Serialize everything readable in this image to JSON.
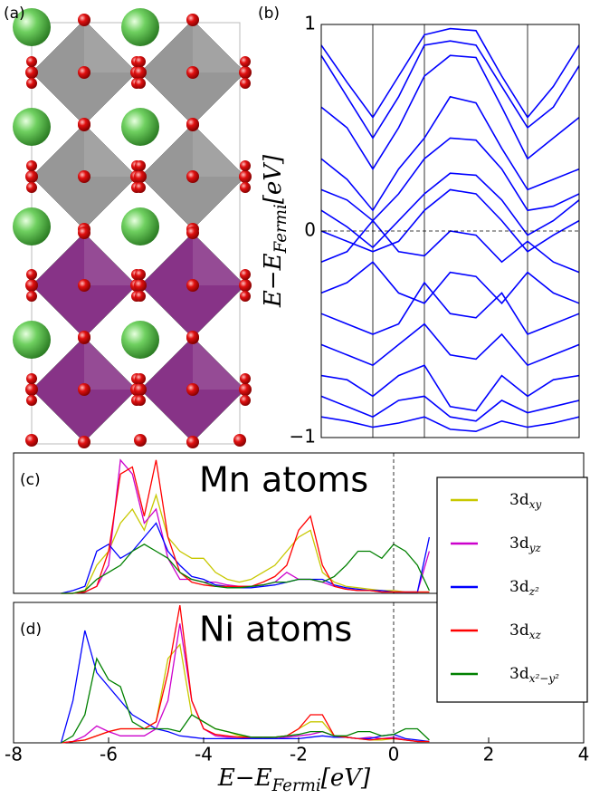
{
  "figure_a": {
    "label": "(a)"
  },
  "chart_data": [
    {
      "type": "bands",
      "panel_label": "(b)",
      "color": "#0000ff",
      "ylabel": {
        "text": "E−E",
        "subscript": "Fermi",
        "suffix": "[eV]"
      },
      "xlim": [
        0,
        1
      ],
      "ylim": [
        -1,
        1
      ],
      "yticks": [
        {
          "value": -1,
          "label": "−1"
        },
        0,
        1
      ],
      "vlines": [
        0.2,
        0.4,
        0.8
      ],
      "hline": 0,
      "x": [
        0,
        0.1,
        0.2,
        0.3,
        0.4,
        0.5,
        0.6,
        0.7,
        0.8,
        0.9,
        1.0
      ],
      "series": [
        {
          "values": [
            0.9,
            0.72,
            0.55,
            0.75,
            0.95,
            0.98,
            0.97,
            0.75,
            0.55,
            0.7,
            0.9
          ]
        },
        {
          "values": [
            0.85,
            0.65,
            0.45,
            0.65,
            0.9,
            0.92,
            0.9,
            0.7,
            0.5,
            0.6,
            0.8
          ]
        },
        {
          "values": [
            0.6,
            0.5,
            0.3,
            0.5,
            0.75,
            0.85,
            0.84,
            0.6,
            0.35,
            0.45,
            0.55
          ]
        },
        {
          "values": [
            0.35,
            0.25,
            0.1,
            0.3,
            0.45,
            0.65,
            0.62,
            0.4,
            0.2,
            0.25,
            0.3
          ]
        },
        {
          "values": [
            0.2,
            0.15,
            0.05,
            0.18,
            0.35,
            0.45,
            0.44,
            0.3,
            0.1,
            0.12,
            0.18
          ]
        },
        {
          "values": [
            0.1,
            0.02,
            -0.08,
            0.05,
            0.18,
            0.28,
            0.27,
            0.15,
            -0.02,
            0.05,
            0.15
          ]
        },
        {
          "values": [
            0.0,
            -0.05,
            -0.1,
            -0.05,
            0.1,
            0.2,
            0.18,
            0.05,
            -0.1,
            -0.02,
            0.05
          ]
        },
        {
          "values": [
            -0.15,
            -0.1,
            0.05,
            -0.1,
            -0.12,
            0.0,
            -0.02,
            -0.15,
            -0.05,
            -0.15,
            -0.2
          ]
        },
        {
          "values": [
            -0.3,
            -0.25,
            -0.15,
            -0.3,
            -0.35,
            -0.2,
            -0.22,
            -0.35,
            -0.2,
            -0.3,
            -0.35
          ]
        },
        {
          "values": [
            -0.4,
            -0.45,
            -0.5,
            -0.45,
            -0.25,
            -0.4,
            -0.42,
            -0.3,
            -0.5,
            -0.45,
            -0.4
          ]
        },
        {
          "values": [
            -0.55,
            -0.6,
            -0.65,
            -0.55,
            -0.45,
            -0.6,
            -0.62,
            -0.5,
            -0.65,
            -0.6,
            -0.55
          ]
        },
        {
          "values": [
            -0.7,
            -0.72,
            -0.8,
            -0.7,
            -0.65,
            -0.85,
            -0.87,
            -0.7,
            -0.8,
            -0.72,
            -0.7
          ]
        },
        {
          "values": [
            -0.8,
            -0.85,
            -0.9,
            -0.82,
            -0.8,
            -0.9,
            -0.92,
            -0.82,
            -0.88,
            -0.85,
            -0.82
          ]
        },
        {
          "values": [
            -0.9,
            -0.92,
            -0.95,
            -0.93,
            -0.9,
            -0.96,
            -0.97,
            -0.92,
            -0.95,
            -0.93,
            -0.9
          ]
        }
      ]
    },
    {
      "type": "line",
      "panel_label": "(c)",
      "annotation": "Mn atoms",
      "xlim": [
        -8,
        4
      ],
      "ylim": [
        0,
        1
      ],
      "vline": 0,
      "legend": "right",
      "x": [
        -7,
        -6.75,
        -6.5,
        -6.25,
        -6,
        -5.75,
        -5.5,
        -5.25,
        -5,
        -4.75,
        -4.5,
        -4.25,
        -4,
        -3.75,
        -3.5,
        -3.25,
        -3,
        -2.75,
        -2.5,
        -2.25,
        -2,
        -1.75,
        -1.5,
        -1.25,
        -1,
        -0.75,
        -0.5,
        -0.25,
        0,
        0.25,
        0.5,
        0.75
      ],
      "series": [
        {
          "name": "3d",
          "subscript": "xy",
          "color": "#c8c800",
          "values": [
            0,
            0,
            0.02,
            0.2,
            0.3,
            0.5,
            0.6,
            0.45,
            0.7,
            0.4,
            0.3,
            0.25,
            0.25,
            0.15,
            0.1,
            0.08,
            0.1,
            0.15,
            0.2,
            0.3,
            0.4,
            0.45,
            0.15,
            0.08,
            0.05,
            0.04,
            0.03,
            0.02,
            0.02,
            0.01,
            0.01,
            0.01
          ]
        },
        {
          "name": "3d",
          "subscript": "yz",
          "color": "#cc00cc",
          "values": [
            0,
            0,
            0.01,
            0.05,
            0.2,
            0.95,
            0.85,
            0.5,
            0.6,
            0.25,
            0.1,
            0.1,
            0.08,
            0.08,
            0.06,
            0.05,
            0.05,
            0.06,
            0.08,
            0.15,
            0.1,
            0.1,
            0.08,
            0.05,
            0.03,
            0.02,
            0.02,
            0.01,
            0.01,
            0.01,
            0.01,
            0.3
          ]
        },
        {
          "name": "3d",
          "subscript": "z²",
          "color": "#0000ff",
          "values": [
            0,
            0.02,
            0.05,
            0.3,
            0.35,
            0.25,
            0.3,
            0.4,
            0.5,
            0.3,
            0.2,
            0.12,
            0.1,
            0.06,
            0.05,
            0.04,
            0.04,
            0.05,
            0.06,
            0.08,
            0.1,
            0.1,
            0.1,
            0.06,
            0.04,
            0.03,
            0.02,
            0.02,
            0.01,
            0.01,
            0.01,
            0.4
          ]
        },
        {
          "name": "3d",
          "subscript": "xz",
          "color": "#ff0000",
          "values": [
            0,
            0,
            0.01,
            0.05,
            0.3,
            0.85,
            0.9,
            0.55,
            0.95,
            0.4,
            0.15,
            0.08,
            0.06,
            0.05,
            0.05,
            0.05,
            0.05,
            0.08,
            0.12,
            0.2,
            0.45,
            0.55,
            0.2,
            0.05,
            0.03,
            0.02,
            0.02,
            0.01,
            0.01,
            0.01,
            0.01,
            0.01
          ]
        },
        {
          "name": "3d",
          "subscript": "x²−y²",
          "color": "#008000",
          "values": [
            0,
            0,
            0.02,
            0.1,
            0.15,
            0.2,
            0.3,
            0.35,
            0.3,
            0.25,
            0.15,
            0.1,
            0.08,
            0.05,
            0.04,
            0.04,
            0.05,
            0.06,
            0.08,
            0.08,
            0.1,
            0.1,
            0.08,
            0.12,
            0.2,
            0.3,
            0.3,
            0.25,
            0.35,
            0.3,
            0.2,
            0.02
          ]
        }
      ]
    },
    {
      "type": "line",
      "panel_label": "(d)",
      "annotation": "Ni atoms",
      "xlabel": {
        "text": "E−E",
        "subscript": "Fermi",
        "suffix": "[eV]"
      },
      "xlim": [
        -8,
        4
      ],
      "ylim": [
        0,
        1
      ],
      "vline": 0,
      "xticks": [
        -8,
        -6,
        -4,
        -2,
        0,
        2,
        4
      ],
      "x": [
        -7,
        -6.75,
        -6.5,
        -6.25,
        -6,
        -5.75,
        -5.5,
        -5.25,
        -5,
        -4.75,
        -4.5,
        -4.25,
        -4,
        -3.75,
        -3.5,
        -3.25,
        -3,
        -2.75,
        -2.5,
        -2.25,
        -2,
        -1.75,
        -1.5,
        -1.25,
        -1,
        -0.75,
        -0.5,
        -0.25,
        0,
        0.25,
        0.5,
        0.75
      ],
      "series": [
        {
          "color": "#c8c800",
          "values": [
            0,
            0.01,
            0.02,
            0.05,
            0.08,
            0.1,
            0.1,
            0.1,
            0.15,
            0.6,
            0.7,
            0.2,
            0.15,
            0.1,
            0.08,
            0.05,
            0.04,
            0.03,
            0.04,
            0.05,
            0.1,
            0.15,
            0.15,
            0.05,
            0.04,
            0.03,
            0.02,
            0.02,
            0.03,
            0.02,
            0.01,
            0.01
          ]
        },
        {
          "color": "#cc00cc",
          "values": [
            0,
            0.01,
            0.05,
            0.12,
            0.08,
            0.05,
            0.05,
            0.05,
            0.1,
            0.3,
            0.85,
            0.3,
            0.1,
            0.05,
            0.04,
            0.04,
            0.03,
            0.03,
            0.03,
            0.04,
            0.05,
            0.06,
            0.08,
            0.05,
            0.04,
            0.03,
            0.04,
            0.03,
            0.04,
            0.02,
            0.01,
            0.01
          ]
        },
        {
          "color": "#0000ff",
          "values": [
            0,
            0.3,
            0.8,
            0.5,
            0.4,
            0.3,
            0.2,
            0.15,
            0.1,
            0.08,
            0.05,
            0.04,
            0.03,
            0.03,
            0.03,
            0.03,
            0.03,
            0.03,
            0.03,
            0.03,
            0.03,
            0.04,
            0.05,
            0.04,
            0.04,
            0.03,
            0.03,
            0.05,
            0.06,
            0.03,
            0.02,
            0.01
          ]
        },
        {
          "color": "#ff0000",
          "values": [
            0,
            0.01,
            0.02,
            0.05,
            0.08,
            0.1,
            0.1,
            0.1,
            0.15,
            0.5,
            0.98,
            0.3,
            0.1,
            0.06,
            0.05,
            0.04,
            0.04,
            0.04,
            0.04,
            0.05,
            0.1,
            0.2,
            0.2,
            0.05,
            0.04,
            0.03,
            0.02,
            0.03,
            0.03,
            0.02,
            0.01,
            0.01
          ]
        },
        {
          "color": "#008000",
          "values": [
            0,
            0.05,
            0.2,
            0.6,
            0.45,
            0.4,
            0.15,
            0.1,
            0.1,
            0.1,
            0.08,
            0.2,
            0.15,
            0.1,
            0.08,
            0.06,
            0.04,
            0.04,
            0.04,
            0.05,
            0.06,
            0.08,
            0.08,
            0.05,
            0.05,
            0.08,
            0.08,
            0.05,
            0.06,
            0.1,
            0.1,
            0.02
          ]
        }
      ]
    }
  ]
}
